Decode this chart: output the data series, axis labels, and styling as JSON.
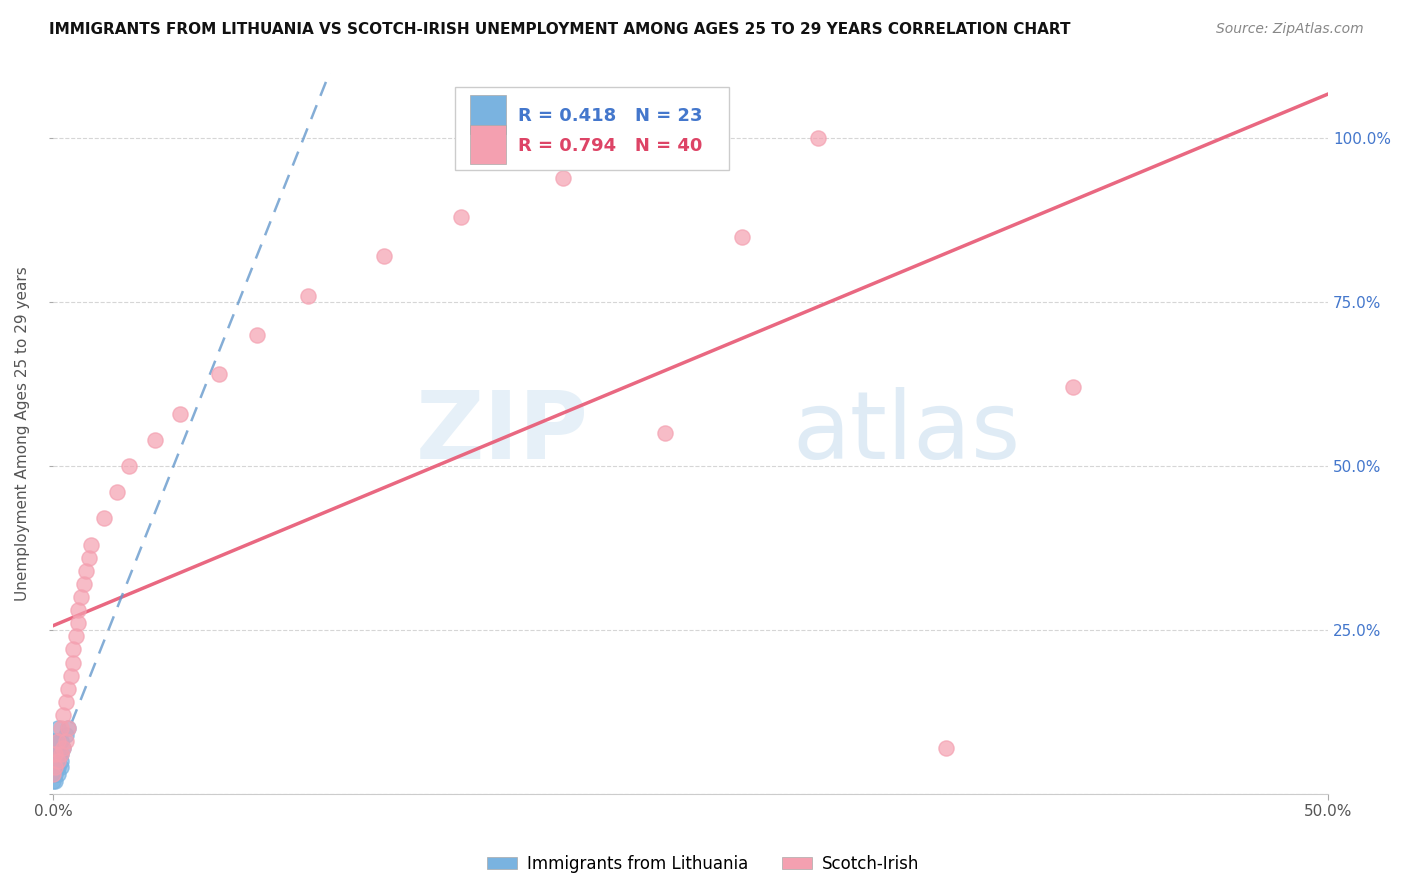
{
  "title": "IMMIGRANTS FROM LITHUANIA VS SCOTCH-IRISH UNEMPLOYMENT AMONG AGES 25 TO 29 YEARS CORRELATION CHART",
  "source": "Source: ZipAtlas.com",
  "ylabel": "Unemployment Among Ages 25 to 29 years",
  "xlim": [
    0.0,
    0.5
  ],
  "ylim": [
    0.0,
    1.1
  ],
  "xtick_positions": [
    0.0,
    0.5
  ],
  "xtick_labels": [
    "0.0%",
    "50.0%"
  ],
  "ytick_positions": [
    0.0,
    0.25,
    0.5,
    0.75,
    1.0
  ],
  "ytick_labels_right": [
    "",
    "25.0%",
    "50.0%",
    "75.0%",
    "100.0%"
  ],
  "r_lithuania": 0.418,
  "n_lithuania": 23,
  "r_scotch": 0.794,
  "n_scotch": 40,
  "color_lithuania": "#7ab3e0",
  "color_scotch": "#f4a0b0",
  "color_lith_line": "#6699cc",
  "color_scotch_line": "#e8607a",
  "watermark_text": "ZIPatlas",
  "watermark_color": "#d0e8f5",
  "legend_text_color_lith": "#4477cc",
  "legend_text_color_scotch": "#dd4466",
  "lith_x": [
    0.0,
    0.0,
    0.0,
    0.001,
    0.001,
    0.001,
    0.001,
    0.001,
    0.001,
    0.001,
    0.002,
    0.002,
    0.002,
    0.002,
    0.002,
    0.002,
    0.003,
    0.003,
    0.003,
    0.003,
    0.004,
    0.005,
    0.006
  ],
  "lith_y": [
    0.02,
    0.03,
    0.04,
    0.02,
    0.03,
    0.04,
    0.05,
    0.06,
    0.07,
    0.08,
    0.03,
    0.04,
    0.05,
    0.06,
    0.08,
    0.1,
    0.04,
    0.05,
    0.06,
    0.08,
    0.07,
    0.09,
    0.1
  ],
  "scotch_x": [
    0.0,
    0.001,
    0.001,
    0.002,
    0.002,
    0.003,
    0.003,
    0.004,
    0.004,
    0.005,
    0.005,
    0.006,
    0.006,
    0.007,
    0.008,
    0.008,
    0.009,
    0.01,
    0.01,
    0.011,
    0.012,
    0.013,
    0.014,
    0.015,
    0.02,
    0.025,
    0.03,
    0.04,
    0.05,
    0.065,
    0.08,
    0.1,
    0.13,
    0.16,
    0.2,
    0.24,
    0.27,
    0.3,
    0.35,
    0.4
  ],
  "scotch_y": [
    0.03,
    0.04,
    0.06,
    0.05,
    0.08,
    0.06,
    0.1,
    0.07,
    0.12,
    0.08,
    0.14,
    0.1,
    0.16,
    0.18,
    0.2,
    0.22,
    0.24,
    0.26,
    0.28,
    0.3,
    0.32,
    0.34,
    0.36,
    0.38,
    0.42,
    0.46,
    0.5,
    0.54,
    0.58,
    0.64,
    0.7,
    0.76,
    0.82,
    0.88,
    0.94,
    0.55,
    0.85,
    1.0,
    0.07,
    0.62
  ]
}
